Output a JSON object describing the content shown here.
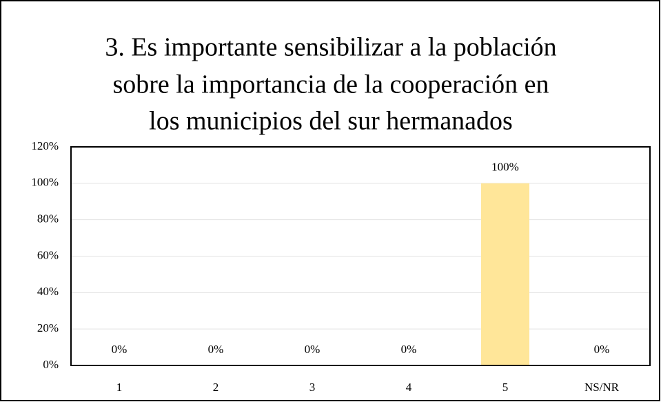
{
  "chart_data": {
    "type": "bar",
    "title": [
      "3. Es importante sensibilizar a la población",
      "sobre la importancia de la cooperación en",
      "los municipios del sur hermanados"
    ],
    "categories": [
      "1",
      "2",
      "3",
      "4",
      "5",
      "NS/NR"
    ],
    "values": [
      0,
      0,
      0,
      0,
      100,
      0
    ],
    "value_labels": [
      "0%",
      "0%",
      "0%",
      "0%",
      "100%",
      "0%"
    ],
    "color": "#ffe699",
    "ylim": [
      0,
      120
    ],
    "yticks": [
      {
        "value": 0,
        "label": "0%"
      },
      {
        "value": 20,
        "label": "20%"
      },
      {
        "value": 40,
        "label": "40%"
      },
      {
        "value": 60,
        "label": "60%"
      },
      {
        "value": 80,
        "label": "80%"
      },
      {
        "value": 100,
        "label": "100%"
      },
      {
        "value": 120,
        "label": "120%"
      }
    ],
    "grid": true
  }
}
